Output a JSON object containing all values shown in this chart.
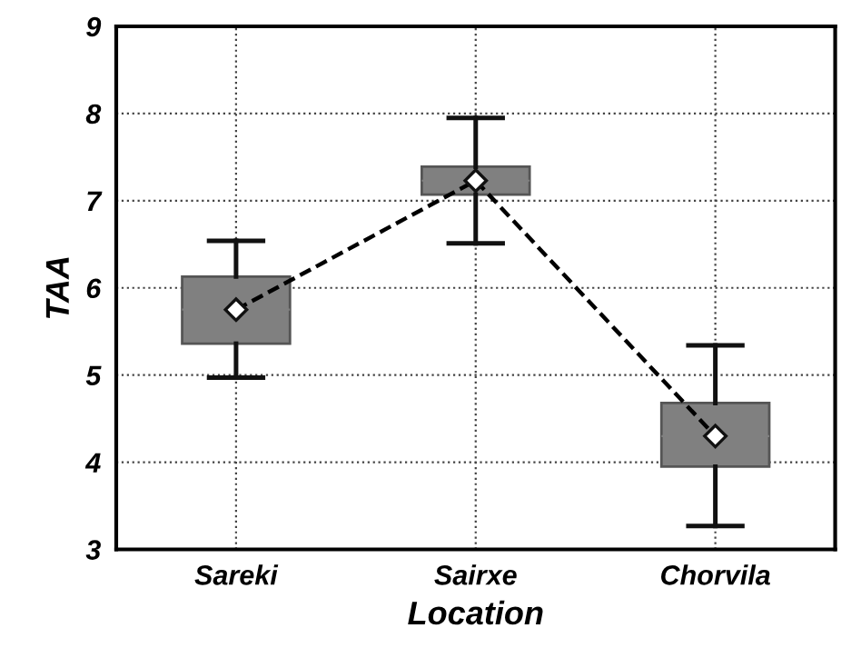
{
  "chart_data": {
    "type": "box",
    "xlabel": "Location",
    "ylabel": "TAA",
    "categories": [
      "Sareki",
      "Sairxe",
      "Chorvila"
    ],
    "boxes": [
      {
        "low": 4.97,
        "q1": 5.36,
        "median": 5.75,
        "q3": 6.13,
        "high": 6.54
      },
      {
        "low": 6.51,
        "q1": 7.07,
        "median": 7.23,
        "q3": 7.39,
        "high": 7.95
      },
      {
        "low": 3.27,
        "q1": 3.95,
        "median": 4.3,
        "q3": 4.68,
        "high": 5.34
      }
    ],
    "color": "#808080",
    "series": [
      {
        "type": "line",
        "color": "#000000",
        "values": [
          5.75,
          7.23,
          4.3
        ],
        "line_style": "dashed",
        "marker": "diamond"
      }
    ],
    "ylim": [
      3,
      9
    ],
    "yticks": [
      3,
      4,
      5,
      6,
      7,
      8,
      9
    ],
    "grid": true
  }
}
